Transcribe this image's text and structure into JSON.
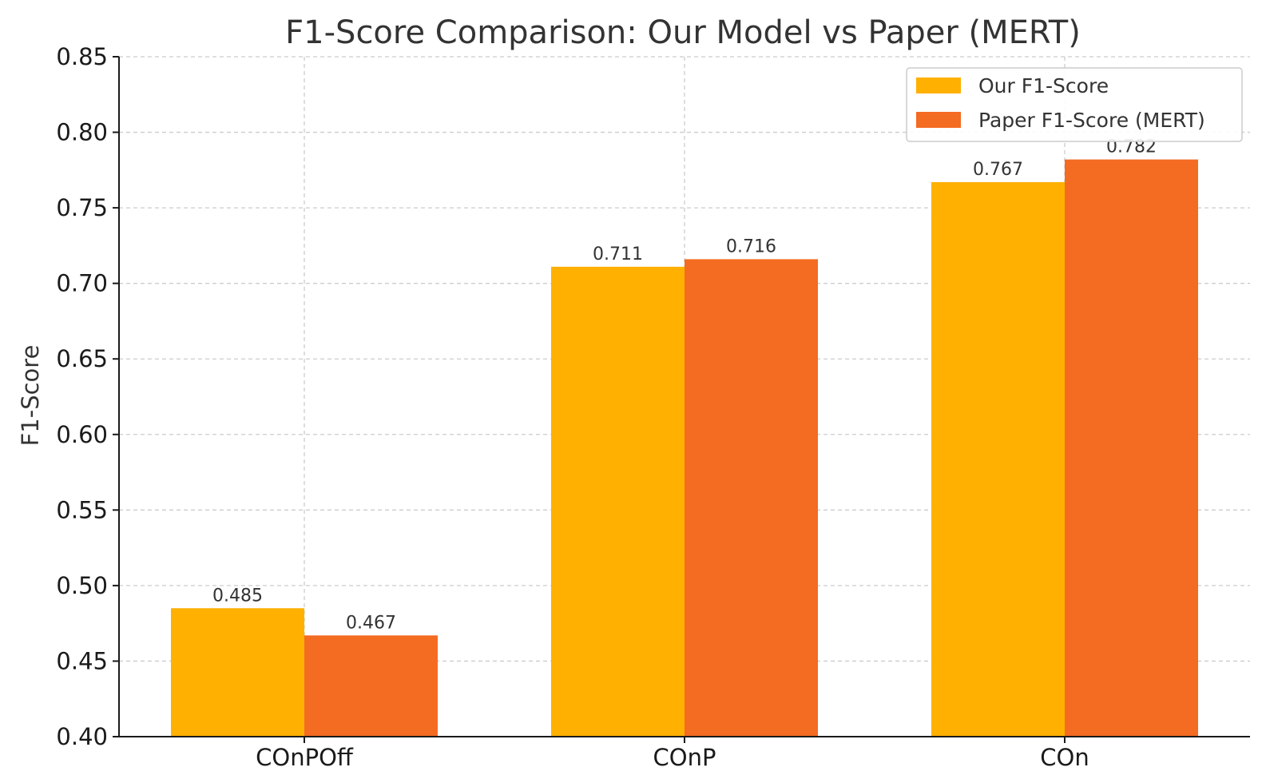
{
  "chart_data": {
    "type": "bar",
    "title": "F1-Score Comparison: Our Model vs Paper (MERT)",
    "xlabel": "",
    "ylabel": "F1-Score",
    "ylim": [
      0.4,
      0.85
    ],
    "yticks": [
      "0.40",
      "0.45",
      "0.50",
      "0.55",
      "0.60",
      "0.65",
      "0.70",
      "0.75",
      "0.80",
      "0.85"
    ],
    "categories": [
      "COnPOff",
      "COnP",
      "COn"
    ],
    "series": [
      {
        "name": "Our F1-Score",
        "color": "#FFB000",
        "values": [
          0.485,
          0.711,
          0.767
        ],
        "labels": [
          "0.485",
          "0.711",
          "0.767"
        ]
      },
      {
        "name": "Paper F1-Score (MERT)",
        "color": "#F46B22",
        "values": [
          0.467,
          0.716,
          0.782
        ],
        "labels": [
          "0.467",
          "0.716",
          "0.782"
        ]
      }
    ],
    "grid": true,
    "legend_position": "top-right"
  }
}
